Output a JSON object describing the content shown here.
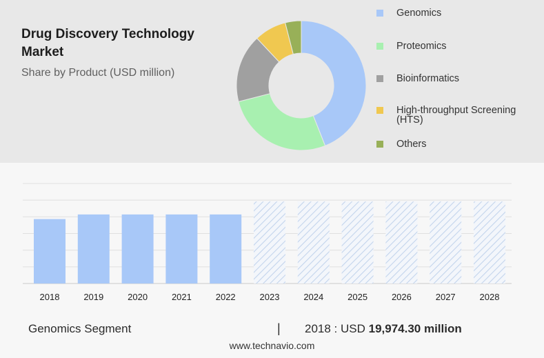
{
  "header": {
    "title": "Drug Discovery Technology Market",
    "subtitle": "Share by Product (USD million)"
  },
  "chart_data": [
    {
      "type": "pie",
      "title": "Drug Discovery Technology Market",
      "subtitle": "Share by Product (USD million)",
      "donut": true,
      "legend_position": "right",
      "slices": [
        {
          "label": "Genomics",
          "value": 44,
          "color": "#a8c8f8"
        },
        {
          "label": "Proteomics",
          "value": 27,
          "color": "#a8f0b0"
        },
        {
          "label": "Bioinformatics",
          "value": 17,
          "color": "#a0a0a0"
        },
        {
          "label": "High-throughput Screening (HTS)",
          "value": 8,
          "color": "#f0c850"
        },
        {
          "label": "Others",
          "value": 4,
          "color": "#98b058"
        }
      ]
    },
    {
      "type": "bar",
      "categories": [
        "2018",
        "2019",
        "2020",
        "2021",
        "2022",
        "2023",
        "2024",
        "2025",
        "2026",
        "2027",
        "2028"
      ],
      "values": [
        19974.3,
        21400,
        21400,
        21400,
        21400,
        null,
        null,
        null,
        null,
        null,
        null
      ],
      "forecast_categories": [
        "2023",
        "2024",
        "2025",
        "2026",
        "2027",
        "2028"
      ],
      "ylim": [
        0,
        31000
      ],
      "grid": true,
      "bar_color": "#a8c8f8",
      "forecast_style": "hatched"
    }
  ],
  "footer": {
    "segment_label": "Genomics Segment",
    "separator": "|",
    "value_prefix": "2018 : USD ",
    "value_amount": "19,974.30 million",
    "source": "www.technavio.com"
  }
}
